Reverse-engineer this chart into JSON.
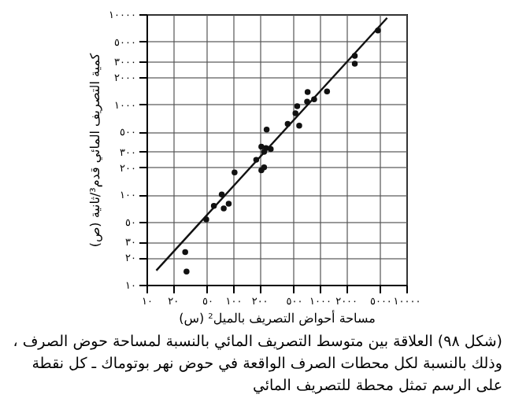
{
  "chart_data": {
    "type": "scatter",
    "xlabel": "مساحة أحواض التصريف بالميل² (س)",
    "ylabel": "كمية التصريف المائي قدم³/ثانية (ص)",
    "annotations": [
      "(شكل ٩٨) العلاقة بين متوسط التصريف المائي بالنسبة لمساحة حوض الصرف ، وذلك بالنسبة لكل محطات الصرف الواقعة في حوض نهر بوتوماك ـ كل نقطة على الرسم تمثل محطة للتصريف المائي"
    ],
    "log": "xy",
    "grid": true,
    "marker": "circle",
    "xlim": [
      10,
      10000
    ],
    "ylim": [
      10,
      10000
    ],
    "xticks": [
      {
        "value": 10,
        "label": "١٠"
      },
      {
        "value": 20,
        "label": "٢٠"
      },
      {
        "value": 50,
        "label": "٥٠"
      },
      {
        "value": 100,
        "label": "١٠٠"
      },
      {
        "value": 200,
        "label": "٢٠٠"
      },
      {
        "value": 500,
        "label": "٥٠٠"
      },
      {
        "value": 1000,
        "label": "١٠٠٠"
      },
      {
        "value": 2000,
        "label": "٢٠٠٠"
      },
      {
        "value": 5000,
        "label": "٥٠٠٠"
      },
      {
        "value": 10000,
        "label": "١٠٠٠٠"
      }
    ],
    "yticks": [
      {
        "value": 10,
        "label": "١٠"
      },
      {
        "value": 20,
        "label": "٢٠"
      },
      {
        "value": 30,
        "label": "٣٠"
      },
      {
        "value": 50,
        "label": "٥٠"
      },
      {
        "value": 100,
        "label": "١٠٠"
      },
      {
        "value": 200,
        "label": "٢٠٠"
      },
      {
        "value": 300,
        "label": "٣٠٠"
      },
      {
        "value": 500,
        "label": "٥٠٠"
      },
      {
        "value": 1000,
        "label": "١٠٠٠"
      },
      {
        "value": 2000,
        "label": "٢٠٠٠"
      },
      {
        "value": 3000,
        "label": "٣٠٠٠"
      },
      {
        "value": 5000,
        "label": "٥٠٠٠"
      },
      {
        "value": 10000,
        "label": "١٠٠٠٠"
      }
    ],
    "series": [
      {
        "color": "#111111",
        "x": [
          28,
          29,
          49,
          60,
          74,
          78,
          89,
          104,
          185,
          212,
          240,
          272,
          212,
          228,
          228,
          244,
          427,
          580,
          525,
          550,
          716,
          725,
          862,
          1215,
          2540,
          2540,
          4700
        ],
        "values": [
          23,
          14,
          53,
          75,
          100,
          70,
          79,
          176,
          243,
          186,
          328,
          320,
          340,
          200,
          297,
          525,
          606,
          580,
          795,
          955,
          1070,
          1370,
          1140,
          1390,
          2820,
          3450,
          6600
        ]
      },
      {
        "type": "line",
        "marker": "none",
        "color": "#111111",
        "x": [
          13,
          6000
        ],
        "values": [
          14.4,
          9100
        ]
      }
    ]
  }
}
